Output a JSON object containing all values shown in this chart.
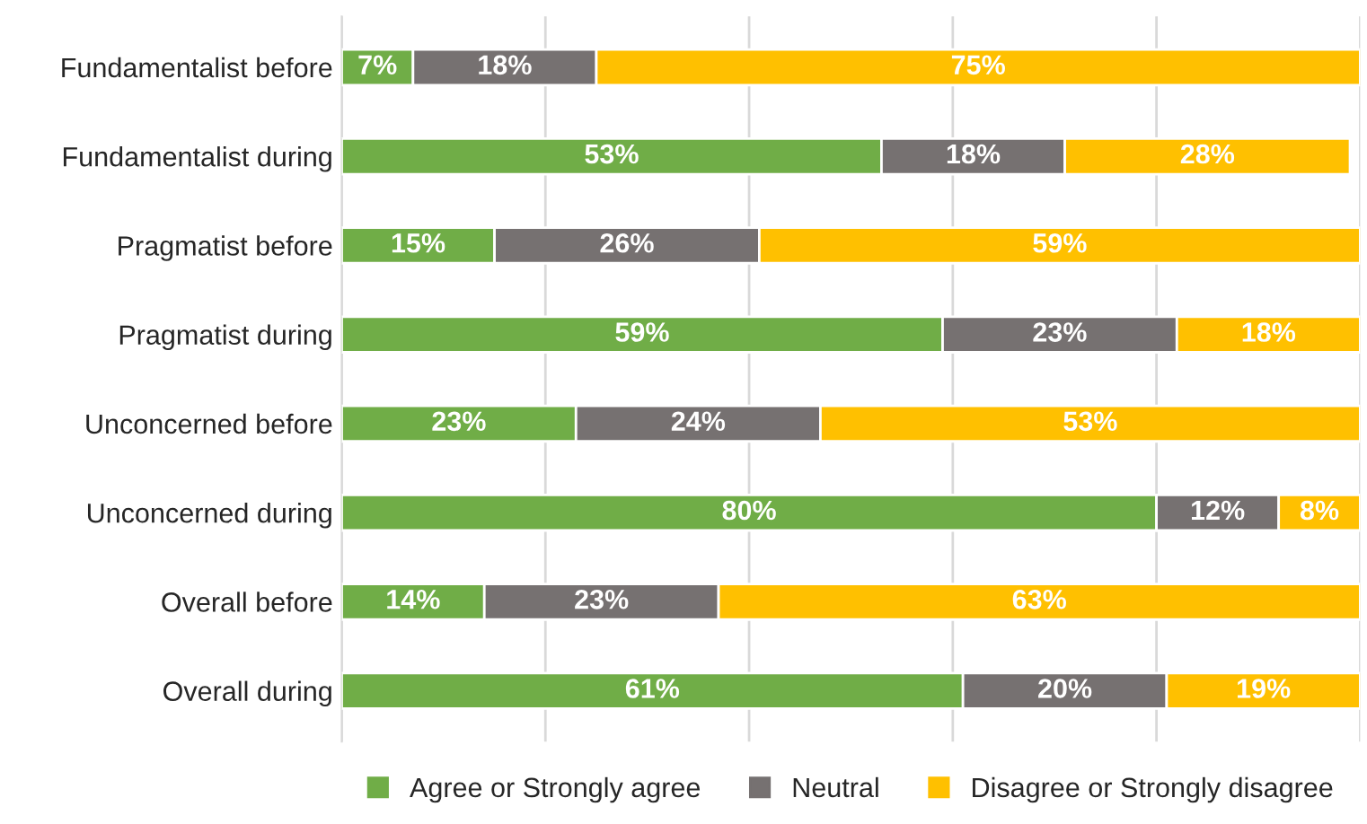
{
  "chart_data": {
    "type": "bar",
    "orientation": "horizontal",
    "stacked": true,
    "categories": [
      "Fundamentalist before",
      "Fundamentalist during",
      "Pragmatist before",
      "Pragmatist during",
      "Unconcerned before",
      "Unconcerned during",
      "Overall before",
      "Overall during"
    ],
    "series": [
      {
        "name": "Agree or Strongly agree",
        "color": "#70ad47",
        "values": [
          7,
          53,
          15,
          59,
          23,
          80,
          14,
          61
        ],
        "value_labels": [
          "7%",
          "53%",
          "15%",
          "59%",
          "23%",
          "80%",
          "14%",
          "61%"
        ]
      },
      {
        "name": "Neutral",
        "color": "#767171",
        "values": [
          18,
          18,
          26,
          23,
          24,
          12,
          23,
          20
        ],
        "value_labels": [
          "18%",
          "18%",
          "26%",
          "23%",
          "24%",
          "12%",
          "23%",
          "20%"
        ]
      },
      {
        "name": "Disagree or Strongly disagree",
        "color": "#ffc000",
        "values": [
          75,
          28,
          59,
          18,
          53,
          8,
          63,
          19
        ],
        "value_labels": [
          "75%",
          "28%",
          "59%",
          "18%",
          "53%",
          "8%",
          "63%",
          "19%"
        ]
      }
    ],
    "tick_labels": "y",
    "grid": "x",
    "legend": "bottom"
  }
}
